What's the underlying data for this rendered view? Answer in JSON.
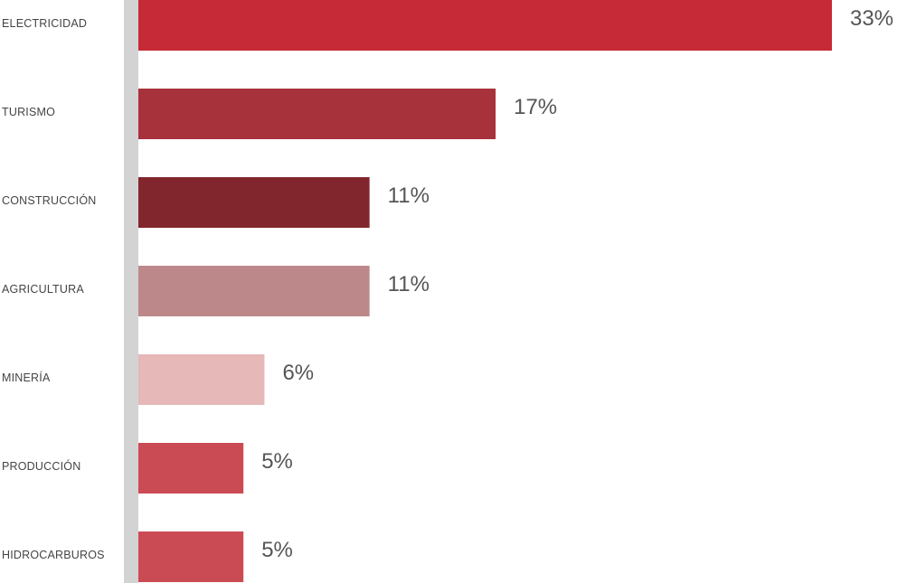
{
  "chart_data": {
    "type": "bar",
    "orientation": "horizontal",
    "categories": [
      "ELECTRICIDAD",
      "TURISMO",
      "CONSTRUCCIÓN",
      "AGRICULTURA",
      "MINERÍA",
      "PRODUCCIÓN",
      "HIDROCARBUROS"
    ],
    "values": [
      33,
      17,
      11,
      11,
      6,
      5,
      5
    ],
    "value_labels": [
      "33%",
      "17%",
      "11%",
      "11%",
      "6%",
      "5%",
      "5%"
    ],
    "colors": [
      "#c62a36",
      "#a8323b",
      "#82262e",
      "#bd8889",
      "#e6b8b8",
      "#cb4b55",
      "#cb4b55"
    ],
    "axis_color": "#d3d3d3",
    "title": "",
    "xlabel": "",
    "ylabel": "",
    "grid": false,
    "legend": "none"
  }
}
